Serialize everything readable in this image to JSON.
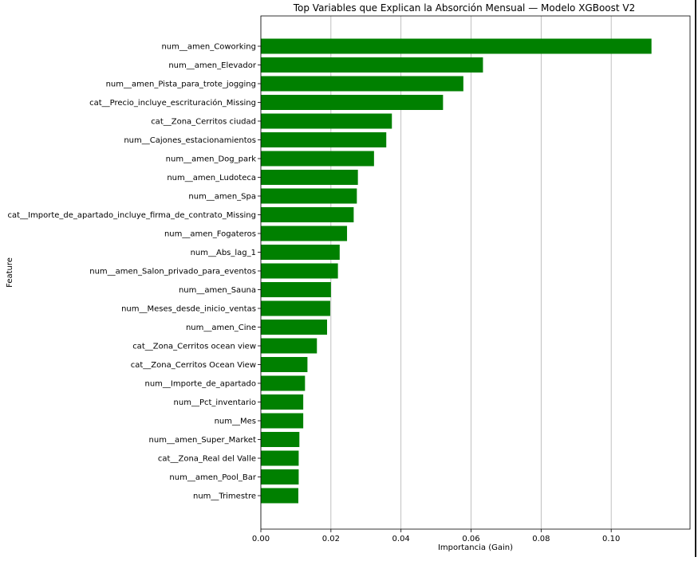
{
  "chart_data": {
    "type": "bar",
    "orientation": "horizontal",
    "title": "Top Variables que Explican la Absorción Mensual — Modelo XGBoost V2",
    "xlabel": "Importancia (Gain)",
    "ylabel": "Feature",
    "xlim": [
      0,
      0.1225
    ],
    "xticks": [
      0.0,
      0.02,
      0.04,
      0.06,
      0.08,
      0.1
    ],
    "xtick_labels": [
      "0.00",
      "0.02",
      "0.04",
      "0.06",
      "0.08",
      "0.10"
    ],
    "grid": "vertical gridlines on x-axis",
    "bar_color": "#008000",
    "categories": [
      "num__amen_Coworking",
      "num__amen_Elevador",
      "num__amen_Pista_para_trote_jogging",
      "cat__Precio_incluye_escrituración_Missing",
      "cat__Zona_Cerritos ciudad",
      "num__Cajones_estacionamientos",
      "num__amen_Dog_park",
      "num__amen_Ludoteca",
      "num__amen_Spa",
      "cat__Importe_de_apartado_incluye_firma_de_contrato_Missing",
      "num__amen_Fogateros",
      "num__Abs_lag_1",
      "num__amen_Salon_privado_para_eventos",
      "num__amen_Sauna",
      "num__Meses_desde_inicio_ventas",
      "num__amen_Cine",
      "cat__Zona_Cerritos ocean view",
      "cat__Zona_Cerritos Ocean View",
      "num__Importe_de_apartado",
      "num__Pct_inventario",
      "num__Mes",
      "num__amen_Super_Market",
      "cat__Zona_Real del Valle",
      "num__amen_Pool_Bar",
      "num__Trimestre"
    ],
    "values": [
      0.1115,
      0.0634,
      0.0578,
      0.052,
      0.0374,
      0.0358,
      0.0323,
      0.0277,
      0.0274,
      0.0265,
      0.0246,
      0.0225,
      0.022,
      0.02,
      0.0198,
      0.0189,
      0.016,
      0.0133,
      0.0126,
      0.0121,
      0.0121,
      0.011,
      0.0108,
      0.0108,
      0.0107
    ]
  }
}
